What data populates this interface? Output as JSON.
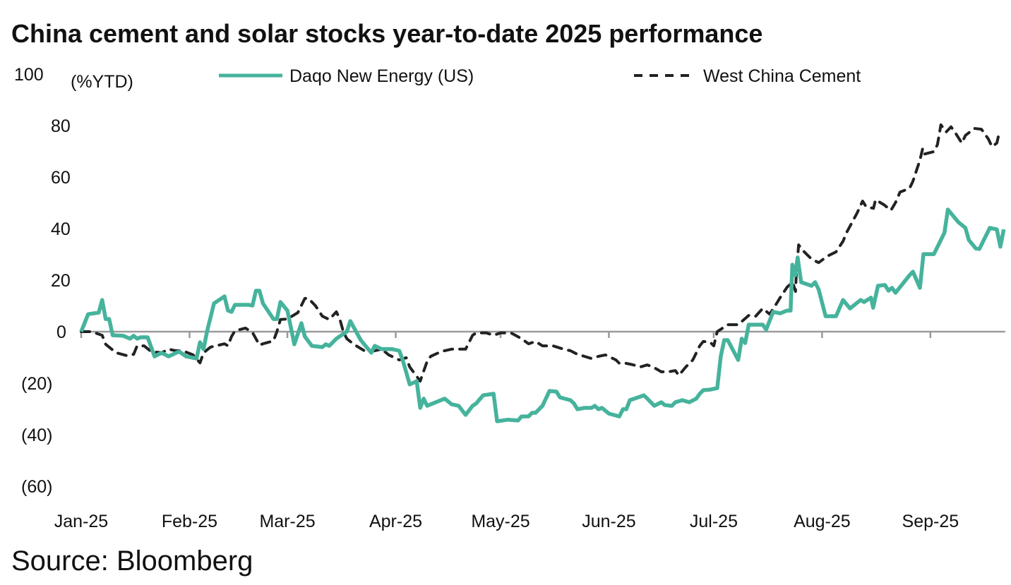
{
  "chart_data": {
    "type": "line",
    "title": "China cement and solar stocks year-to-date 2025 performance",
    "ylabel": "(%YTD)",
    "xlabel": "",
    "x_unit": "day of year 2025 (0 = 1 Jan)",
    "ylim": [
      -60,
      100
    ],
    "yticks": [
      100,
      80,
      60,
      40,
      20,
      0,
      -20,
      -40,
      -60
    ],
    "ytick_labels": [
      "100",
      "80",
      "60",
      "40",
      "20",
      "0",
      "(20)",
      "(40)",
      "(60)"
    ],
    "xticks": [
      0,
      31,
      59,
      90,
      120,
      151,
      181,
      212,
      243
    ],
    "xtick_labels": [
      "Jan-25",
      "Feb-25",
      "Mar-25",
      "Apr-25",
      "May-25",
      "Jun-25",
      "Jul-25",
      "Aug-25",
      "Sep-25"
    ],
    "xlim": [
      0,
      264
    ],
    "grid": false,
    "legend_position": "top",
    "source": "Source: Bloomberg",
    "series": [
      {
        "name": "Daqo New Energy (US)",
        "color": "#46B39C",
        "style": "solid",
        "points": [
          [
            0,
            0
          ],
          [
            2,
            6.8
          ],
          [
            5,
            7.4
          ],
          [
            6,
            12.3
          ],
          [
            7,
            4.9
          ],
          [
            8,
            4.9
          ],
          [
            9,
            -1.4
          ],
          [
            12,
            -1.6
          ],
          [
            14,
            -2.7
          ],
          [
            15,
            -1.6
          ],
          [
            16,
            -2.7
          ],
          [
            17,
            -2.2
          ],
          [
            19,
            -2.2
          ],
          [
            21,
            -9.6
          ],
          [
            23,
            -8.2
          ],
          [
            25,
            -9.6
          ],
          [
            28,
            -7.7
          ],
          [
            30,
            -9.6
          ],
          [
            33,
            -10.4
          ],
          [
            34,
            -4.1
          ],
          [
            35,
            -6.8
          ],
          [
            36,
            0
          ],
          [
            38,
            11
          ],
          [
            41,
            13.7
          ],
          [
            42,
            8.2
          ],
          [
            43,
            7.7
          ],
          [
            44,
            10.4
          ],
          [
            48,
            10.4
          ],
          [
            49,
            10.1
          ],
          [
            50,
            15.9
          ],
          [
            51,
            15.9
          ],
          [
            52,
            11
          ],
          [
            55,
            4.9
          ],
          [
            56,
            4.9
          ],
          [
            57,
            11.5
          ],
          [
            59,
            8.2
          ],
          [
            61,
            -4.9
          ],
          [
            63,
            3.3
          ],
          [
            64,
            -1.9
          ],
          [
            66,
            -5.5
          ],
          [
            69,
            -6
          ],
          [
            70,
            -4.9
          ],
          [
            71,
            -5.5
          ],
          [
            73,
            -2.7
          ],
          [
            76,
            0
          ],
          [
            77,
            4.1
          ],
          [
            80,
            -3.3
          ],
          [
            83,
            -8.2
          ],
          [
            84,
            -5.5
          ],
          [
            86,
            -6.8
          ],
          [
            89,
            -6.8
          ],
          [
            91,
            -7.4
          ],
          [
            92,
            -11
          ],
          [
            94,
            -20.5
          ],
          [
            96,
            -19.2
          ],
          [
            97,
            -29.6
          ],
          [
            98,
            -26
          ],
          [
            99,
            -28.8
          ],
          [
            104,
            -26
          ],
          [
            106,
            -28.2
          ],
          [
            108,
            -28.8
          ],
          [
            110,
            -32.3
          ],
          [
            112,
            -28.8
          ],
          [
            113,
            -27.9
          ],
          [
            115,
            -24.7
          ],
          [
            118,
            -24.1
          ],
          [
            119,
            -34.8
          ],
          [
            122,
            -34.2
          ],
          [
            125,
            -34.5
          ],
          [
            126,
            -32.9
          ],
          [
            128,
            -32.9
          ],
          [
            129,
            -31.5
          ],
          [
            130,
            -31.5
          ],
          [
            132,
            -28.8
          ],
          [
            134,
            -23
          ],
          [
            136,
            -23.3
          ],
          [
            137,
            -25.5
          ],
          [
            140,
            -26.6
          ],
          [
            141,
            -27.9
          ],
          [
            142,
            -30.1
          ],
          [
            144,
            -29.6
          ],
          [
            146,
            -29.6
          ],
          [
            147,
            -28.8
          ],
          [
            148,
            -30.1
          ],
          [
            149,
            -29.6
          ],
          [
            151,
            -31.8
          ],
          [
            154,
            -32.9
          ],
          [
            155,
            -30.1
          ],
          [
            156,
            -30.1
          ],
          [
            157,
            -26.6
          ],
          [
            160,
            -25.2
          ],
          [
            161,
            -24.7
          ],
          [
            162,
            -26
          ],
          [
            164,
            -28.8
          ],
          [
            166,
            -27.4
          ],
          [
            167,
            -28.5
          ],
          [
            169,
            -28.8
          ],
          [
            170,
            -27.4
          ],
          [
            172,
            -26.6
          ],
          [
            174,
            -27.4
          ],
          [
            176,
            -26
          ],
          [
            177,
            -24.1
          ],
          [
            178,
            -22.7
          ],
          [
            180,
            -22.5
          ],
          [
            182,
            -21.9
          ],
          [
            183,
            -9.6
          ],
          [
            184,
            -3.3
          ],
          [
            185,
            -3.3
          ],
          [
            188,
            -11
          ],
          [
            189,
            -2.7
          ],
          [
            190,
            -4.4
          ],
          [
            191,
            2.7
          ],
          [
            193,
            2.7
          ],
          [
            195,
            2.7
          ],
          [
            196,
            0.8
          ],
          [
            198,
            7.7
          ],
          [
            200,
            7.1
          ],
          [
            202,
            8.2
          ],
          [
            203,
            8.2
          ],
          [
            203.5,
            26
          ],
          [
            204.3,
            21.9
          ],
          [
            205,
            28.8
          ],
          [
            206,
            19.2
          ],
          [
            209,
            17.8
          ],
          [
            210,
            19.2
          ],
          [
            211,
            16.4
          ],
          [
            213,
            6
          ],
          [
            216,
            6
          ],
          [
            218,
            12.3
          ],
          [
            220,
            9
          ],
          [
            223,
            12.3
          ],
          [
            224,
            11.5
          ],
          [
            226,
            13.2
          ],
          [
            226.6,
            9.3
          ],
          [
            228,
            17.8
          ],
          [
            230,
            18.1
          ],
          [
            231,
            15.9
          ],
          [
            232,
            17
          ],
          [
            233,
            15.1
          ],
          [
            237,
            21.9
          ],
          [
            238,
            23.3
          ],
          [
            240,
            17
          ],
          [
            241,
            30.1
          ],
          [
            244,
            30.1
          ],
          [
            245,
            32.9
          ],
          [
            247,
            38.4
          ],
          [
            248,
            47.4
          ],
          [
            251,
            42.5
          ],
          [
            253,
            40.3
          ],
          [
            254,
            35.6
          ],
          [
            256,
            32.3
          ],
          [
            257,
            32.1
          ],
          [
            260,
            40.3
          ],
          [
            262,
            39.7
          ],
          [
            263,
            33
          ],
          [
            264,
            39.7
          ]
        ]
      },
      {
        "name": "West China Cement",
        "color": "#222222",
        "style": "dashed",
        "points": [
          [
            0,
            0
          ],
          [
            3,
            0
          ],
          [
            6,
            -1.4
          ],
          [
            7,
            -4.9
          ],
          [
            10,
            -8.2
          ],
          [
            13,
            -9.3
          ],
          [
            15,
            -8.8
          ],
          [
            16,
            -5.5
          ],
          [
            18,
            -5.5
          ],
          [
            20,
            -7.7
          ],
          [
            23,
            -8.2
          ],
          [
            25,
            -6.8
          ],
          [
            27,
            -7.4
          ],
          [
            29,
            -7.4
          ],
          [
            32,
            -9
          ],
          [
            34,
            -12.1
          ],
          [
            35,
            -8.2
          ],
          [
            37,
            -6
          ],
          [
            41,
            -4.7
          ],
          [
            42,
            -5.5
          ],
          [
            43,
            -1.9
          ],
          [
            44,
            0.3
          ],
          [
            47,
            1.4
          ],
          [
            49,
            -0.3
          ],
          [
            51,
            -5.2
          ],
          [
            52,
            -4.7
          ],
          [
            55,
            -3.6
          ],
          [
            56,
            0
          ],
          [
            57,
            4.7
          ],
          [
            59,
            4.9
          ],
          [
            62,
            7.4
          ],
          [
            64,
            12.9
          ],
          [
            65,
            12.9
          ],
          [
            67,
            10.1
          ],
          [
            69,
            6
          ],
          [
            71,
            4.7
          ],
          [
            73,
            7.7
          ],
          [
            74,
            4.9
          ],
          [
            75,
            0
          ],
          [
            76,
            -2.7
          ],
          [
            78,
            -4.9
          ],
          [
            81,
            -7.4
          ],
          [
            83,
            -7.7
          ],
          [
            86,
            -6.8
          ],
          [
            88,
            -9
          ],
          [
            91,
            -11
          ],
          [
            93,
            -10.1
          ],
          [
            94,
            -13.7
          ],
          [
            97,
            -19.2
          ],
          [
            99,
            -11.5
          ],
          [
            100,
            -9.6
          ],
          [
            103,
            -7.7
          ],
          [
            106,
            -6.8
          ],
          [
            110,
            -6.8
          ],
          [
            112,
            -1.4
          ],
          [
            113,
            -0.5
          ],
          [
            116,
            -0.5
          ],
          [
            118,
            -1.4
          ],
          [
            120,
            -0.5
          ],
          [
            123,
            -0.5
          ],
          [
            126,
            -2.7
          ],
          [
            128,
            -4.7
          ],
          [
            130,
            -3.8
          ],
          [
            132,
            -5.5
          ],
          [
            135,
            -5.5
          ],
          [
            138,
            -6.8
          ],
          [
            140,
            -7.4
          ],
          [
            142,
            -8.8
          ],
          [
            144,
            -9.6
          ],
          [
            146,
            -10.4
          ],
          [
            148,
            -9.6
          ],
          [
            150,
            -9
          ],
          [
            153,
            -11
          ],
          [
            154,
            -12.3
          ],
          [
            156,
            -12.3
          ],
          [
            158,
            -12.9
          ],
          [
            160,
            -13.7
          ],
          [
            162,
            -12.9
          ],
          [
            164,
            -14
          ],
          [
            166,
            -15.6
          ],
          [
            168,
            -15.6
          ],
          [
            170,
            -15.1
          ],
          [
            171,
            -17
          ],
          [
            173,
            -13.7
          ],
          [
            175,
            -11
          ],
          [
            177,
            -5.5
          ],
          [
            178,
            -3.8
          ],
          [
            180,
            -4.1
          ],
          [
            181,
            -5.5
          ],
          [
            182,
            0
          ],
          [
            185,
            2.7
          ],
          [
            188,
            2.7
          ],
          [
            191,
            6.3
          ],
          [
            193,
            6
          ],
          [
            195,
            9
          ],
          [
            197,
            6.8
          ],
          [
            199,
            11
          ],
          [
            200,
            13.2
          ],
          [
            202,
            17.3
          ],
          [
            203.6,
            19.2
          ],
          [
            204.4,
            15.6
          ],
          [
            204.6,
            21.9
          ],
          [
            205.3,
            33.7
          ],
          [
            206.5,
            31.5
          ],
          [
            209,
            28.2
          ],
          [
            211,
            26.8
          ],
          [
            213.5,
            29.3
          ],
          [
            216,
            31
          ],
          [
            218,
            35.1
          ],
          [
            219,
            38.4
          ],
          [
            220.6,
            42.5
          ],
          [
            222,
            46
          ],
          [
            223.6,
            50.7
          ],
          [
            224.6,
            48.5
          ],
          [
            226.7,
            47.9
          ],
          [
            227.3,
            51.2
          ],
          [
            229.7,
            49.3
          ],
          [
            231.7,
            47.1
          ],
          [
            233,
            50.1
          ],
          [
            234.3,
            54.2
          ],
          [
            237,
            55.6
          ],
          [
            238,
            58.4
          ],
          [
            239,
            62.5
          ],
          [
            240,
            66.6
          ],
          [
            240.8,
            71.2
          ],
          [
            241.4,
            69
          ],
          [
            244,
            69.9
          ],
          [
            245,
            72.6
          ],
          [
            246,
            80.3
          ],
          [
            247.5,
            77.5
          ],
          [
            248.9,
            79.5
          ],
          [
            250,
            77.5
          ],
          [
            252,
            73.2
          ],
          [
            253,
            76.2
          ],
          [
            255.6,
            78.9
          ],
          [
            257.6,
            78.6
          ],
          [
            259.6,
            74.8
          ],
          [
            260.6,
            71.8
          ],
          [
            262,
            73.2
          ],
          [
            262.6,
            76.7
          ]
        ]
      }
    ]
  }
}
